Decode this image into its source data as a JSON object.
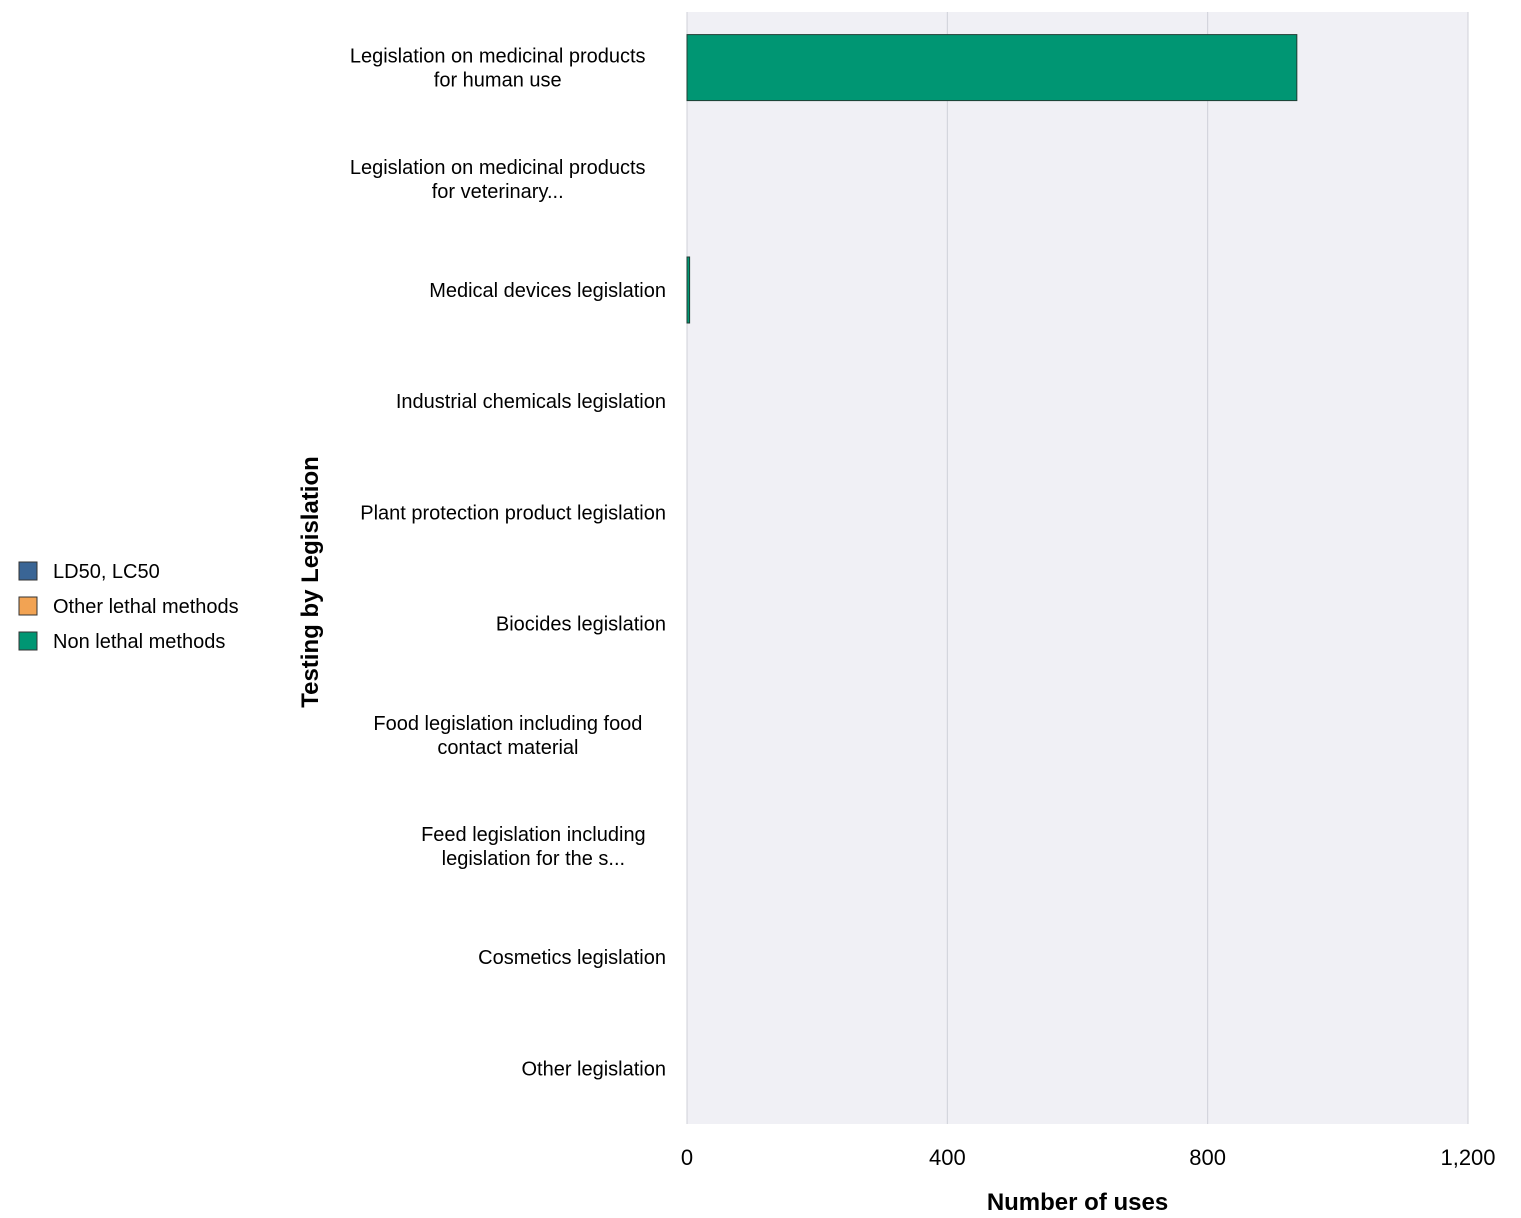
{
  "chart_data": {
    "type": "bar",
    "orientation": "horizontal",
    "stacked": true,
    "categories": [
      [
        "Legislation on medicinal products",
        "for human use"
      ],
      [
        "Legislation on medicinal products",
        "for veterinary..."
      ],
      [
        "Medical devices legislation"
      ],
      [
        "Industrial chemicals legislation"
      ],
      [
        "Plant protection product legislation"
      ],
      [
        "Biocides legislation"
      ],
      [
        "Food legislation including food",
        "contact material"
      ],
      [
        "Feed legislation including",
        "legislation for the s..."
      ],
      [
        "Cosmetics legislation"
      ],
      [
        "Other legislation"
      ]
    ],
    "series": [
      {
        "name": "LD50, LC50",
        "color": "#3a6595",
        "values": [
          0,
          0,
          0,
          0,
          0,
          0,
          0,
          0,
          0,
          0
        ]
      },
      {
        "name": "Other lethal methods",
        "color": "#f2a353",
        "values": [
          0,
          0,
          0,
          0,
          0,
          0,
          0,
          0,
          0,
          0
        ]
      },
      {
        "name": "Non lethal methods",
        "color": "#009673",
        "values": [
          937,
          0,
          4,
          0,
          0,
          0,
          0,
          0,
          0,
          0
        ]
      }
    ],
    "xlabel": "Number of uses",
    "ylabel": "Testing by Legislation",
    "xlim": [
      0,
      1200
    ],
    "xticks": [
      0,
      400,
      800,
      1200
    ],
    "xtick_labels": [
      "0",
      "400",
      "800",
      "1,200"
    ],
    "grid": true,
    "legend_position": "left"
  }
}
